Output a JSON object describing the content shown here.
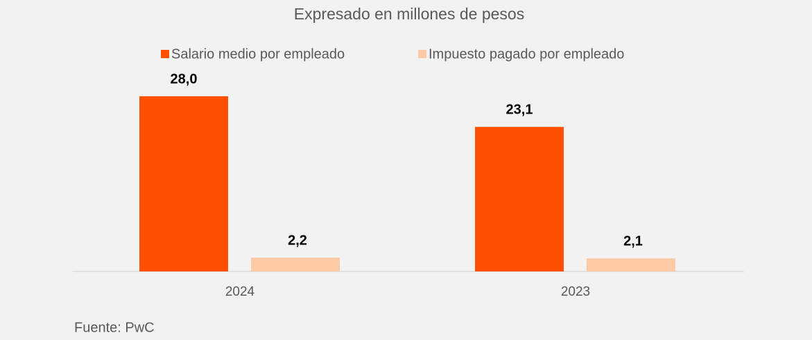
{
  "chart_data": {
    "type": "bar",
    "title": "Expresado en millones de pesos",
    "categories": [
      "2024",
      "2023"
    ],
    "series": [
      {
        "name": "Salario medio por empleado",
        "color": "#fe5000",
        "values": [
          28.0,
          23.1
        ],
        "value_labels": [
          "28,0",
          "23,1"
        ]
      },
      {
        "name": "Impuesto pagado por empleado",
        "color": "#fdcaa5",
        "values": [
          2.2,
          2.1
        ],
        "value_labels": [
          "2,2",
          "2,1"
        ]
      }
    ],
    "source": "Fuente: PwC"
  }
}
